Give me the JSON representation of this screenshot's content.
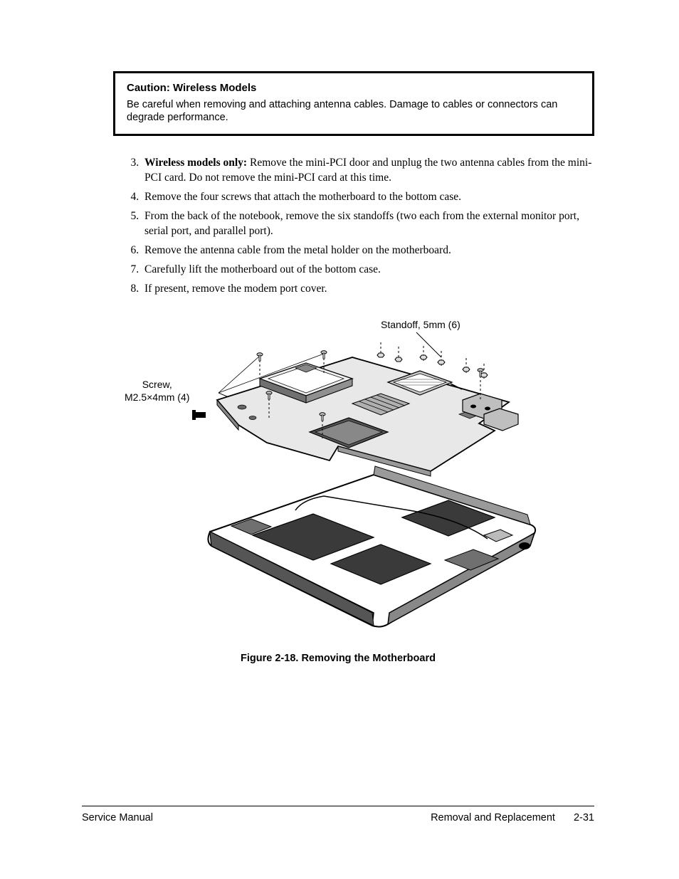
{
  "caution": {
    "title": "Caution: Wireless Models",
    "body": "Be careful when removing and attaching antenna cables. Damage to cables or connectors can degrade performance."
  },
  "steps": {
    "start": 3,
    "items": [
      {
        "lead": "Wireless models only:",
        "text": " Remove the mini-PCI door and unplug the two antenna cables from the mini-PCI card. Do not remove the mini-PCI card at this time."
      },
      {
        "lead": "",
        "text": "Remove the four screws that attach the motherboard to the bottom case."
      },
      {
        "lead": "",
        "text": "From the back of the notebook, remove the six standoffs (two each from the external monitor port, serial port, and parallel port)."
      },
      {
        "lead": "",
        "text": "Remove the antenna cable from the metal holder on the motherboard."
      },
      {
        "lead": "",
        "text": "Carefully lift the motherboard out of the bottom case."
      },
      {
        "lead": "",
        "text": "If present, remove the modem port cover."
      }
    ]
  },
  "callouts": {
    "standoff": "Standoff, 5mm (6)",
    "screw_line1": "Screw,",
    "screw_line2": "M2.5×4mm (4)"
  },
  "figure": {
    "caption": "Figure 2-18. Removing the Motherboard",
    "colors": {
      "stroke": "#000000",
      "fill_light": "#ffffff",
      "fill_mid": "#d0d0d0",
      "fill_dark": "#4a4a4a",
      "fill_black": "#000000"
    }
  },
  "footer": {
    "left": "Service Manual",
    "right_label": "Removal and Replacement",
    "right_page": "2-31"
  }
}
